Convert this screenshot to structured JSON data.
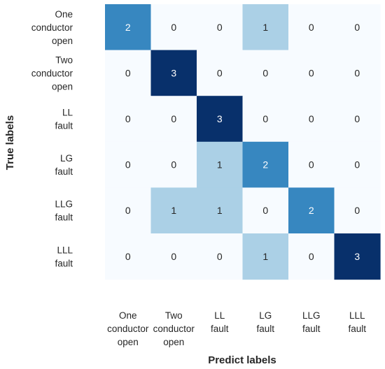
{
  "chart_data": {
    "type": "heatmap",
    "xlabel": "Predict labels",
    "ylabel": "True labels",
    "x_categories": [
      [
        "One",
        "conductor",
        "open"
      ],
      [
        "Two",
        "conductor",
        "open"
      ],
      [
        "LL",
        "fault"
      ],
      [
        "LG",
        "fault"
      ],
      [
        "LLG",
        "fault"
      ],
      [
        "LLL",
        "fault"
      ]
    ],
    "y_categories": [
      [
        "One",
        "conductor",
        "open"
      ],
      [
        "Two",
        "conductor",
        "open"
      ],
      [
        "LL",
        "fault"
      ],
      [
        "LG",
        "fault"
      ],
      [
        "LLG",
        "fault"
      ],
      [
        "LLL",
        "fault"
      ]
    ],
    "matrix": [
      [
        2,
        0,
        0,
        1,
        0,
        0
      ],
      [
        0,
        3,
        0,
        0,
        0,
        0
      ],
      [
        0,
        0,
        3,
        0,
        0,
        0
      ],
      [
        0,
        0,
        1,
        2,
        0,
        0
      ],
      [
        0,
        1,
        1,
        0,
        2,
        0
      ],
      [
        0,
        0,
        0,
        1,
        0,
        3
      ]
    ],
    "value_range": [
      0,
      3
    ],
    "colormap": "Blues",
    "colors": {
      "0": "#f7fbff",
      "1": "#abd0e6",
      "2": "#3787c0",
      "3": "#08306b"
    },
    "annotated": true,
    "colorbar": false
  }
}
